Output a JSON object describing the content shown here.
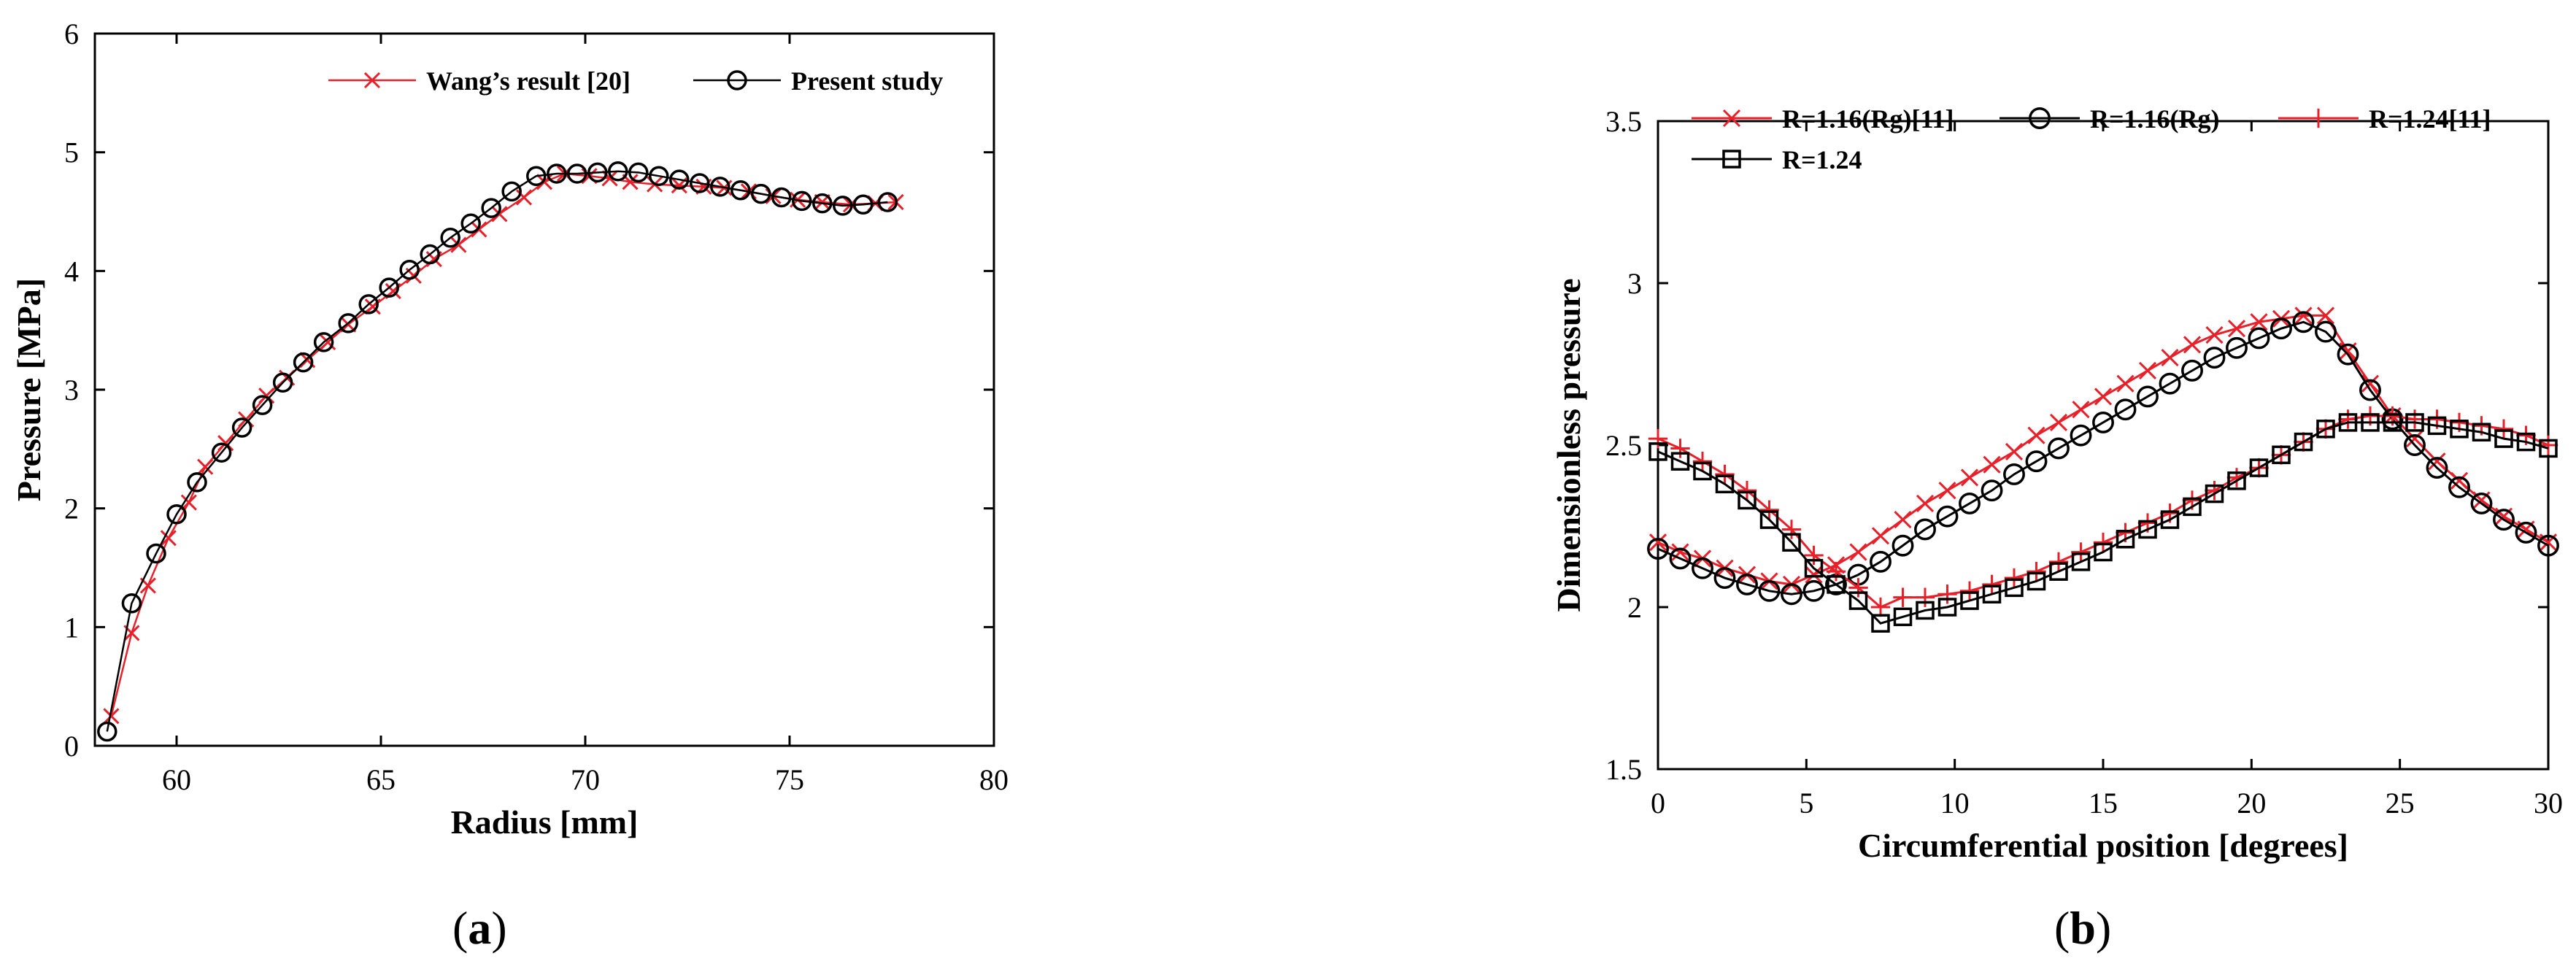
{
  "figure": {
    "label_a": "a",
    "label_b": "b"
  },
  "chart_data": [
    {
      "type": "line",
      "xlabel": "Radius [mm]",
      "ylabel": "Pressure [MPa]",
      "xlim": [
        58,
        80
      ],
      "ylim": [
        0,
        6
      ],
      "xticks": [
        60,
        65,
        70,
        75,
        80
      ],
      "yticks": [
        0,
        1,
        2,
        3,
        4,
        5,
        6
      ],
      "grid": false,
      "legend_position": "top-right",
      "series": [
        {
          "name": "Wang’s result [20]",
          "color": "#e8202a",
          "marker": "x",
          "x": [
            58.4,
            58.9,
            59.3,
            59.8,
            60.3,
            60.7,
            61.2,
            61.7,
            62.2,
            62.7,
            63.2,
            63.7,
            64.2,
            64.8,
            65.3,
            65.8,
            66.3,
            66.9,
            67.4,
            67.9,
            68.5,
            69.0,
            69.5,
            70.1,
            70.6,
            71.1,
            71.7,
            72.3,
            72.9,
            73.4,
            74.0,
            74.6,
            75.2,
            75.8,
            76.5,
            77.1,
            77.6
          ],
          "y": [
            0.25,
            0.95,
            1.35,
            1.75,
            2.05,
            2.35,
            2.55,
            2.75,
            2.95,
            3.1,
            3.25,
            3.4,
            3.55,
            3.7,
            3.83,
            3.96,
            4.1,
            4.22,
            4.35,
            4.48,
            4.62,
            4.75,
            4.82,
            4.8,
            4.78,
            4.75,
            4.73,
            4.72,
            4.71,
            4.7,
            4.67,
            4.63,
            4.6,
            4.58,
            4.56,
            4.57,
            4.58
          ]
        },
        {
          "name": "Present study",
          "color": "#000000",
          "marker": "o",
          "x": [
            58.3,
            58.9,
            59.5,
            60.0,
            60.5,
            61.1,
            61.6,
            62.1,
            62.6,
            63.1,
            63.6,
            64.2,
            64.7,
            65.2,
            65.7,
            66.2,
            66.7,
            67.2,
            67.7,
            68.2,
            68.8,
            69.3,
            69.8,
            70.3,
            70.8,
            71.3,
            71.8,
            72.3,
            72.8,
            73.3,
            73.8,
            74.3,
            74.8,
            75.3,
            75.8,
            76.3,
            76.8,
            77.4
          ],
          "y": [
            0.12,
            1.2,
            1.62,
            1.95,
            2.22,
            2.47,
            2.68,
            2.87,
            3.06,
            3.23,
            3.4,
            3.56,
            3.72,
            3.86,
            4.01,
            4.14,
            4.28,
            4.4,
            4.53,
            4.67,
            4.8,
            4.82,
            4.82,
            4.83,
            4.84,
            4.83,
            4.8,
            4.77,
            4.74,
            4.71,
            4.68,
            4.65,
            4.62,
            4.59,
            4.57,
            4.55,
            4.56,
            4.58
          ]
        }
      ]
    },
    {
      "type": "line",
      "xlabel": "Circumferential position [degrees]",
      "ylabel": "Dimensionless pressure",
      "xlim": [
        0,
        30
      ],
      "ylim": [
        1.5,
        3.5
      ],
      "xticks": [
        0,
        5,
        10,
        15,
        20,
        25,
        30
      ],
      "yticks": [
        1.5,
        2,
        2.5,
        3,
        3.5
      ],
      "grid": false,
      "legend_position": "top",
      "series": [
        {
          "name": "R=1.16(Rg)[11]",
          "color": "#e8202a",
          "marker": "x",
          "x": [
            0,
            0.75,
            1.5,
            2.25,
            3,
            3.75,
            4.5,
            5.25,
            6,
            6.75,
            7.5,
            8.25,
            9,
            9.75,
            10.5,
            11.25,
            12,
            12.75,
            13.5,
            14.25,
            15,
            15.75,
            16.5,
            17.25,
            18,
            18.75,
            19.5,
            20.25,
            21,
            21.75,
            22.5,
            23.25,
            24,
            24.75,
            25.5,
            26.25,
            27,
            27.75,
            28.5,
            29.25,
            30
          ],
          "y": [
            2.2,
            2.17,
            2.15,
            2.12,
            2.1,
            2.08,
            2.07,
            2.1,
            2.13,
            2.17,
            2.22,
            2.27,
            2.32,
            2.36,
            2.4,
            2.44,
            2.48,
            2.53,
            2.57,
            2.61,
            2.65,
            2.69,
            2.73,
            2.77,
            2.81,
            2.84,
            2.86,
            2.88,
            2.89,
            2.9,
            2.9,
            2.79,
            2.69,
            2.59,
            2.52,
            2.45,
            2.39,
            2.33,
            2.28,
            2.24,
            2.2
          ]
        },
        {
          "name": "R=1.16(Rg)",
          "color": "#000000",
          "marker": "o",
          "x": [
            0,
            0.75,
            1.5,
            2.25,
            3,
            3.75,
            4.5,
            5.25,
            6,
            6.75,
            7.5,
            8.25,
            9,
            9.75,
            10.5,
            11.25,
            12,
            12.75,
            13.5,
            14.25,
            15,
            15.75,
            16.5,
            17.25,
            18,
            18.75,
            19.5,
            20.25,
            21,
            21.75,
            22.5,
            23.25,
            24,
            24.75,
            25.5,
            26.25,
            27,
            27.75,
            28.5,
            29.25,
            30
          ],
          "y": [
            2.18,
            2.15,
            2.12,
            2.09,
            2.07,
            2.05,
            2.04,
            2.05,
            2.07,
            2.1,
            2.14,
            2.19,
            2.24,
            2.28,
            2.32,
            2.36,
            2.41,
            2.45,
            2.49,
            2.53,
            2.57,
            2.61,
            2.65,
            2.69,
            2.73,
            2.77,
            2.8,
            2.83,
            2.86,
            2.88,
            2.85,
            2.78,
            2.67,
            2.58,
            2.5,
            2.43,
            2.37,
            2.32,
            2.27,
            2.23,
            2.19
          ]
        },
        {
          "name": "R=1.24[11]",
          "color": "#e8202a",
          "marker": "+",
          "x": [
            0,
            0.75,
            1.5,
            2.25,
            3,
            3.75,
            4.5,
            5.25,
            6,
            6.75,
            7.5,
            8.25,
            9,
            9.75,
            10.5,
            11.25,
            12,
            12.75,
            13.5,
            14.25,
            15,
            15.75,
            16.5,
            17.25,
            18,
            18.75,
            19.5,
            20.25,
            21,
            21.75,
            22.5,
            23.25,
            24,
            24.75,
            25.5,
            26.25,
            27,
            27.75,
            28.5,
            29.25,
            30
          ],
          "y": [
            2.52,
            2.49,
            2.45,
            2.41,
            2.36,
            2.3,
            2.24,
            2.16,
            2.11,
            2.06,
            2.0,
            2.03,
            2.03,
            2.04,
            2.05,
            2.07,
            2.09,
            2.11,
            2.14,
            2.17,
            2.2,
            2.23,
            2.26,
            2.29,
            2.33,
            2.36,
            2.4,
            2.43,
            2.47,
            2.51,
            2.55,
            2.58,
            2.59,
            2.59,
            2.58,
            2.58,
            2.57,
            2.56,
            2.55,
            2.53,
            2.5
          ]
        },
        {
          "name": "R=1.24",
          "color": "#000000",
          "marker": "s",
          "x": [
            0,
            0.75,
            1.5,
            2.25,
            3,
            3.75,
            4.5,
            5.25,
            6,
            6.75,
            7.5,
            8.25,
            9,
            9.75,
            10.5,
            11.25,
            12,
            12.75,
            13.5,
            14.25,
            15,
            15.75,
            16.5,
            17.25,
            18,
            18.75,
            19.5,
            20.25,
            21,
            21.75,
            22.5,
            23.25,
            24,
            24.75,
            25.5,
            26.25,
            27,
            27.75,
            28.5,
            29.25,
            30
          ],
          "y": [
            2.48,
            2.45,
            2.42,
            2.38,
            2.33,
            2.27,
            2.2,
            2.12,
            2.07,
            2.02,
            1.95,
            1.97,
            1.99,
            2.0,
            2.02,
            2.04,
            2.06,
            2.08,
            2.11,
            2.14,
            2.17,
            2.21,
            2.24,
            2.27,
            2.31,
            2.35,
            2.39,
            2.43,
            2.47,
            2.51,
            2.55,
            2.57,
            2.57,
            2.57,
            2.57,
            2.56,
            2.55,
            2.54,
            2.52,
            2.51,
            2.49
          ]
        }
      ]
    }
  ]
}
